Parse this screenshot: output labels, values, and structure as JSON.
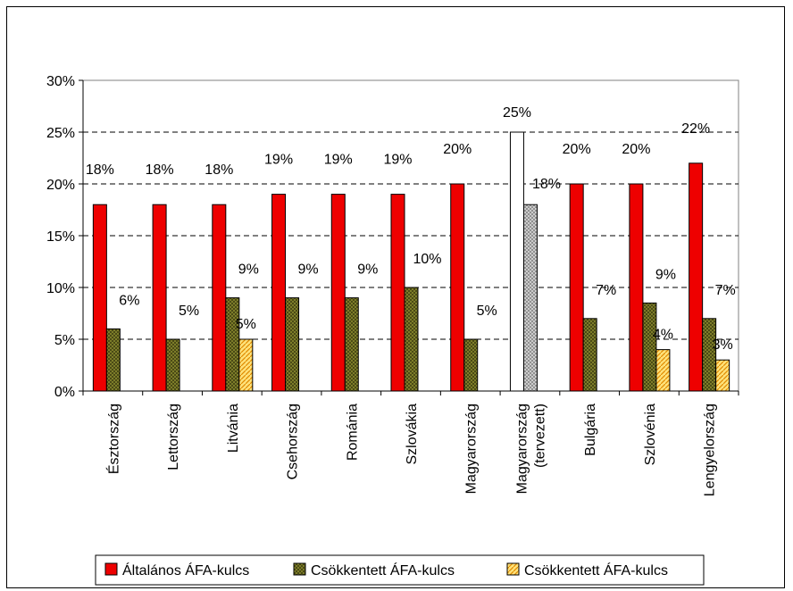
{
  "chart_data": {
    "type": "bar",
    "title": "",
    "xlabel": "",
    "ylabel": "",
    "ylim": [
      0,
      30
    ],
    "ytick_labels": [
      "0%",
      "5%",
      "10%",
      "15%",
      "20%",
      "25%",
      "30%"
    ],
    "grid": "horizontal-dashed",
    "legend_position": "bottom",
    "categories": [
      "Észtország",
      "Lettország",
      "Litvánia",
      "Csehország",
      "Románia",
      "Szlovákia",
      "Magyarország",
      "Magyarország\n(tervezett)",
      "Bulgária",
      "Szlovénia",
      "Lengyelország"
    ],
    "series": [
      {
        "name": "Általános ÁFA-kulcs",
        "color": "#ee0000",
        "pattern": "solid",
        "values": [
          18,
          18,
          18,
          19,
          19,
          19,
          20,
          null,
          20,
          20,
          22
        ],
        "labels": [
          "18%",
          "18%",
          "18%",
          "19%",
          "19%",
          "19%",
          "20%",
          null,
          "20%",
          "20%",
          "22%"
        ]
      },
      {
        "name": "Csökkentett ÁFA-kulcs",
        "color": "#8a8a2e",
        "pattern": "crosshatch",
        "values": [
          6,
          5,
          9,
          9,
          9,
          10,
          5,
          null,
          7,
          8.5,
          7
        ],
        "labels": [
          "6%",
          "5%",
          "9%",
          "9%",
          "9%",
          "10%",
          "5%",
          null,
          "7%",
          "9%",
          "7%"
        ]
      },
      {
        "name": "Csökkentett ÁFA-kulcs",
        "color": "#ffe27a",
        "pattern": "diagonal",
        "values": [
          null,
          null,
          5,
          null,
          null,
          null,
          null,
          null,
          null,
          4,
          3
        ],
        "labels": [
          null,
          null,
          "5%",
          null,
          null,
          null,
          null,
          null,
          null,
          "4%",
          "3%"
        ]
      }
    ],
    "planned": {
      "category_index": 7,
      "general_value": 25,
      "general_label": "25%",
      "general_color": "#ffffff",
      "reduced_value": 18,
      "reduced_label": "18%",
      "reduced_color": "#c0c0c0"
    }
  }
}
